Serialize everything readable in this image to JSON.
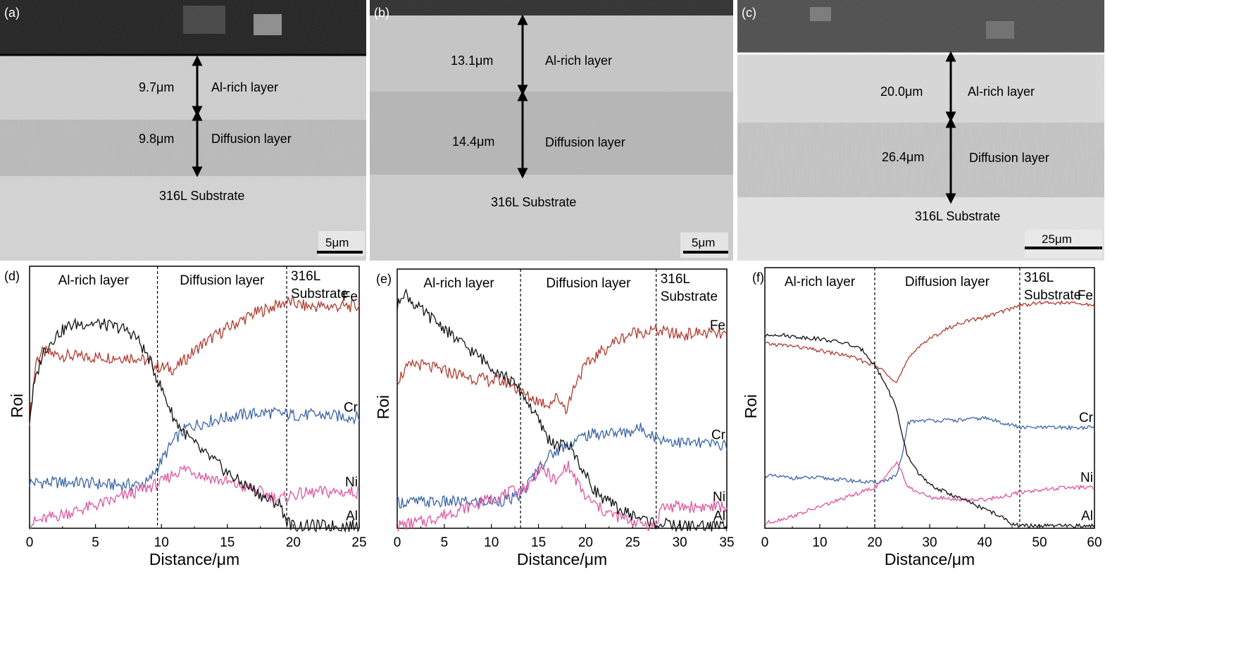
{
  "micrographs": [
    {
      "tag": "(a)",
      "thicknesses": [
        "9.7μm",
        "9.8μm"
      ],
      "layers": [
        "Al-rich layer",
        "Diffusion layer"
      ],
      "substrate": "316L Substrate",
      "scale_bar": "5μm"
    },
    {
      "tag": "(b)",
      "thicknesses": [
        "13.1μm",
        "14.4μm"
      ],
      "layers": [
        "Al-rich layer",
        "Diffusion layer"
      ],
      "substrate": "316L Substrate",
      "scale_bar": "5μm"
    },
    {
      "tag": "(c)",
      "thicknesses": [
        "20.0μm",
        "26.4μm"
      ],
      "layers": [
        "Al-rich layer",
        "Diffusion layer"
      ],
      "substrate": "316L Substrate",
      "scale_bar": "25μm"
    }
  ],
  "colors": {
    "Fe": "#b03a2e",
    "Cr": "#3a64a8",
    "Ni": "#e0559e",
    "Al": "#111111"
  },
  "chart_data": [
    {
      "tag": "(d)",
      "type": "line",
      "xlabel": "Distance/μm",
      "ylabel": "Roi",
      "xlim": [
        0,
        25
      ],
      "ylim": [
        0,
        100
      ],
      "xticks": [
        0,
        5,
        10,
        15,
        20,
        25
      ],
      "regions": [
        "Al-rich layer",
        "Diffusion layer",
        "316L Substrate"
      ],
      "boundaries": [
        9.7,
        19.5
      ],
      "series": [
        {
          "name": "Fe",
          "x": [
            0,
            0.5,
            1,
            2,
            4,
            6,
            8,
            9,
            9.7,
            11,
            13,
            15,
            17,
            19.5,
            21,
            23,
            25
          ],
          "values": [
            45,
            70,
            73,
            72,
            71,
            71,
            71,
            69,
            67,
            66,
            76,
            83,
            89,
            94,
            92,
            92,
            92
          ]
        },
        {
          "name": "Cr",
          "x": [
            0,
            2,
            4,
            6,
            8,
            9,
            10,
            11,
            12,
            14,
            16,
            18,
            20,
            22,
            25
          ],
          "values": [
            19,
            19,
            19,
            18,
            18,
            19,
            28,
            37,
            42,
            45,
            47,
            48,
            47,
            47,
            46
          ]
        },
        {
          "name": "Ni",
          "x": [
            0,
            2,
            4,
            6,
            8,
            10,
            11,
            12,
            13,
            15,
            17,
            19,
            20,
            22,
            25
          ],
          "values": [
            2,
            5,
            8,
            11,
            15,
            19,
            23,
            25,
            22,
            19,
            16,
            12,
            14,
            15,
            15
          ]
        },
        {
          "name": "Al",
          "x": [
            0,
            0.3,
            1,
            2,
            3,
            4,
            5,
            6,
            7,
            8,
            9,
            10,
            11,
            12,
            13,
            14,
            15,
            16,
            17,
            18,
            19,
            19.5,
            20,
            22,
            25
          ],
          "values": [
            45,
            58,
            73,
            80,
            84,
            85,
            85,
            84,
            83,
            80,
            71,
            58,
            45,
            38,
            32,
            28,
            23,
            19,
            16,
            12,
            10,
            3,
            1,
            1,
            1
          ]
        }
      ],
      "legend": "series labels at right end of lines"
    },
    {
      "tag": "(e)",
      "type": "line",
      "xlabel": "Distance/μm",
      "ylabel": "Roi",
      "xlim": [
        0,
        35
      ],
      "ylim": [
        0,
        100
      ],
      "xticks": [
        0,
        5,
        10,
        15,
        20,
        25,
        30,
        35
      ],
      "regions": [
        "Al-rich layer",
        "Diffusion layer",
        "316L Substrate"
      ],
      "boundaries": [
        13.1,
        27.5
      ],
      "series": [
        {
          "name": "Fe",
          "x": [
            0,
            1,
            2,
            4,
            6,
            8,
            10,
            12,
            13.1,
            14,
            16,
            17,
            18,
            19,
            20,
            21,
            23,
            25,
            27.5,
            30,
            32,
            35
          ],
          "values": [
            62,
            67,
            69,
            67,
            65,
            63,
            62,
            61,
            57,
            55,
            52,
            55,
            50,
            62,
            68,
            72,
            78,
            82,
            83,
            81,
            82,
            81
          ]
        },
        {
          "name": "Cr",
          "x": [
            0,
            3,
            6,
            9,
            12,
            13.1,
            14,
            15,
            16,
            18,
            20,
            22,
            24,
            26,
            27.5,
            30,
            35
          ],
          "values": [
            11,
            11,
            11,
            11,
            12,
            14,
            19,
            25,
            30,
            35,
            39,
            40,
            40,
            42,
            38,
            36,
            35
          ]
        },
        {
          "name": "Ni",
          "x": [
            0,
            3,
            6,
            9,
            12,
            13,
            14,
            15,
            16,
            17,
            18,
            19,
            20,
            21,
            22,
            24,
            26,
            27.5,
            28,
            30,
            35
          ],
          "values": [
            1,
            3,
            7,
            11,
            15,
            16,
            18,
            25,
            23,
            19,
            27,
            20,
            13,
            10,
            7,
            4,
            2,
            1,
            9,
            9,
            9
          ]
        },
        {
          "name": "Al",
          "x": [
            0,
            0.5,
            1,
            2,
            3,
            4,
            5,
            6,
            8,
            10,
            12,
            13,
            14,
            15,
            16,
            17,
            18,
            19,
            20,
            21,
            22,
            24,
            26,
            27.5,
            30,
            35
          ],
          "values": [
            92,
            99,
            98,
            93,
            90,
            87,
            84,
            80,
            74,
            68,
            62,
            58,
            52,
            45,
            38,
            34,
            36,
            30,
            22,
            16,
            12,
            7,
            4,
            2,
            1,
            1
          ]
        }
      ],
      "legend": "series labels at right end of lines"
    },
    {
      "tag": "(f)",
      "type": "line",
      "xlabel": "Distance/μm",
      "ylabel": "Roi",
      "xlim": [
        0,
        60
      ],
      "ylim": [
        0,
        100
      ],
      "xticks": [
        0,
        10,
        20,
        30,
        40,
        50,
        60
      ],
      "regions": [
        "Al-rich layer",
        "Diffusion layer",
        "316L Substrate"
      ],
      "boundaries": [
        20.0,
        46.4
      ],
      "series": [
        {
          "name": "Fe",
          "x": [
            0,
            5,
            10,
            15,
            20,
            22,
            24,
            26,
            28,
            30,
            33,
            36,
            40,
            44,
            46.4,
            50,
            55,
            60
          ],
          "values": [
            77,
            76,
            74,
            72,
            68,
            65,
            61,
            70,
            76,
            79,
            83,
            86,
            88,
            91,
            93,
            94,
            94,
            93
          ]
        },
        {
          "name": "Cr",
          "x": [
            0,
            5,
            10,
            15,
            20,
            22,
            24,
            25,
            26,
            28,
            30,
            35,
            40,
            45,
            46.4,
            50,
            55,
            60
          ],
          "values": [
            22,
            21,
            21,
            20,
            19,
            20,
            22,
            30,
            44,
            45,
            45,
            45,
            46,
            43,
            42,
            42,
            42,
            42
          ]
        },
        {
          "name": "Ni",
          "x": [
            0,
            5,
            10,
            15,
            20,
            22,
            23,
            24,
            25,
            26,
            28,
            30,
            35,
            40,
            45,
            46.4,
            50,
            55,
            60
          ],
          "values": [
            2,
            5,
            9,
            13,
            17,
            21,
            25,
            28,
            23,
            17,
            15,
            13,
            12,
            12,
            14,
            15,
            16,
            17,
            17
          ]
        },
        {
          "name": "Al",
          "x": [
            0,
            2,
            5,
            10,
            15,
            18,
            20,
            22,
            24,
            25,
            26,
            28,
            30,
            34,
            38,
            42,
            45,
            46.4,
            50,
            55,
            60
          ],
          "values": [
            80,
            81,
            80,
            79,
            77,
            74,
            68,
            60,
            50,
            38,
            30,
            23,
            18,
            14,
            10,
            6,
            2,
            1,
            1,
            1,
            1
          ]
        }
      ],
      "legend": "series labels at right end of lines"
    }
  ]
}
